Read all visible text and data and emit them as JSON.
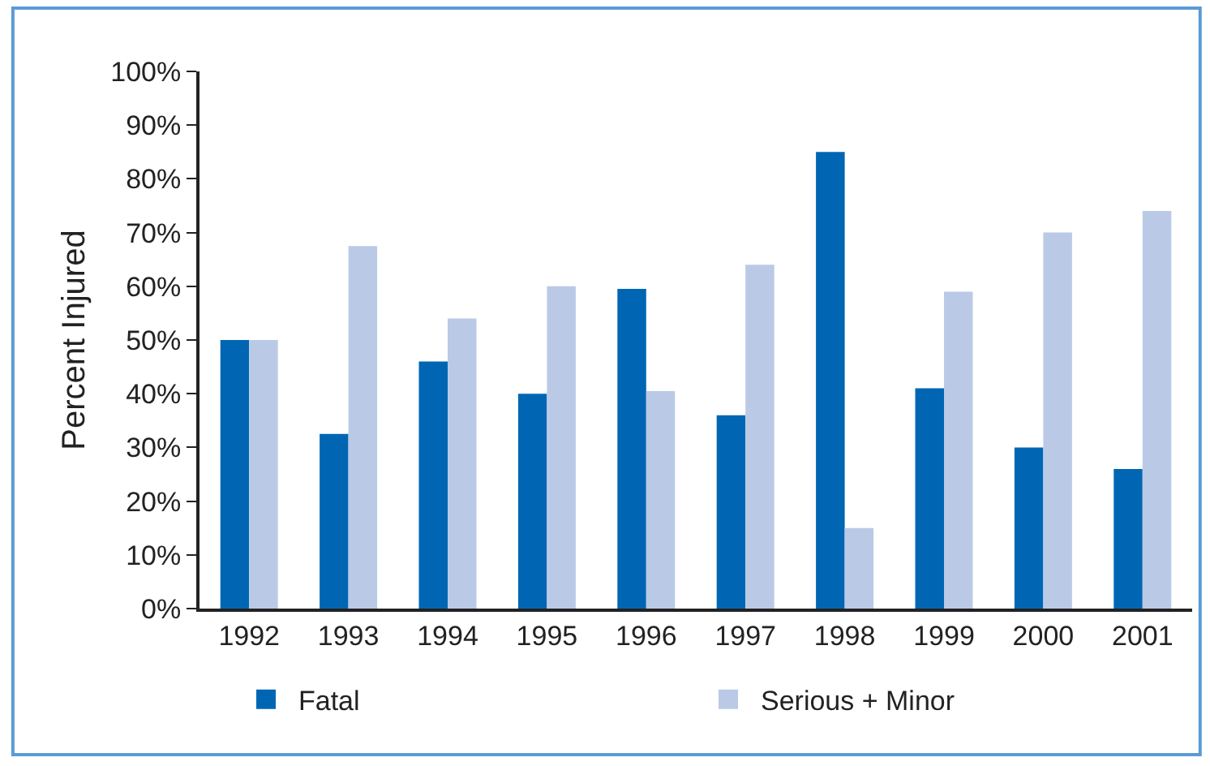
{
  "chart_data": {
    "type": "bar",
    "ylabel": "Percent Injured",
    "categories": [
      "1992",
      "1993",
      "1994",
      "1995",
      "1996",
      "1997",
      "1998",
      "1999",
      "2000",
      "2001"
    ],
    "series": [
      {
        "name": "Fatal",
        "color": "#0066b3",
        "values": [
          50,
          32.5,
          46,
          40,
          59.5,
          36,
          85,
          41,
          30,
          26
        ]
      },
      {
        "name": "Serious + Minor",
        "color": "#bacae6",
        "values": [
          50,
          67.5,
          54,
          60,
          40.5,
          64,
          15,
          59,
          70,
          74
        ]
      }
    ],
    "ylim": [
      0,
      100
    ],
    "yticks": [
      {
        "value": 0,
        "label": "0%"
      },
      {
        "value": 10,
        "label": "10%"
      },
      {
        "value": 20,
        "label": "20%"
      },
      {
        "value": 30,
        "label": "30%"
      },
      {
        "value": 40,
        "label": "40%"
      },
      {
        "value": 50,
        "label": "50%"
      },
      {
        "value": 60,
        "label": "60%"
      },
      {
        "value": 70,
        "label": "70%"
      },
      {
        "value": 80,
        "label": "80%"
      },
      {
        "value": 90,
        "label": "90%"
      },
      {
        "value": 100,
        "label": "100%"
      }
    ],
    "legend": "bottom"
  }
}
